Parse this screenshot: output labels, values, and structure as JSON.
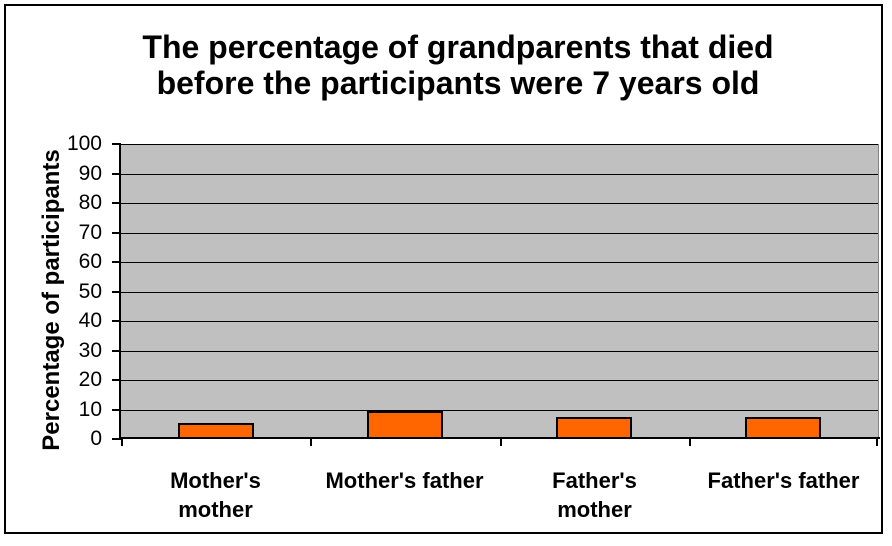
{
  "chart": {
    "title": "The percentage of grandparents that died\nbefore the participants were 7 years old",
    "y_axis": {
      "title": "Percentage of participants",
      "ticks": [
        0,
        10,
        20,
        30,
        40,
        50,
        60,
        70,
        80,
        90,
        100
      ]
    },
    "colors": {
      "bar_fill": "#FF6600",
      "bar_border": "#000000",
      "plot_background": "#C0C0C0",
      "plot_border": "#848284",
      "gridline": "#000000",
      "text": "#000000",
      "background": "#FFFFFF"
    }
  },
  "chart_data": {
    "type": "bar",
    "title": "The percentage of grandparents that died before the participants were 7 years old",
    "categories": [
      "Mother's mother",
      "Mother's father",
      "Father's mother",
      "Father's father"
    ],
    "category_display": [
      "Mother's\nmother",
      "Mother's father",
      "Father's\nmother",
      "Father's father"
    ],
    "values": [
      5.3,
      9.4,
      7.3,
      7.3
    ],
    "xlabel": "",
    "ylabel": "Percentage of participants",
    "ylim": [
      0,
      100
    ],
    "ytick_step": 10,
    "grid": "horizontal-black-on-gray",
    "legend": "none"
  }
}
